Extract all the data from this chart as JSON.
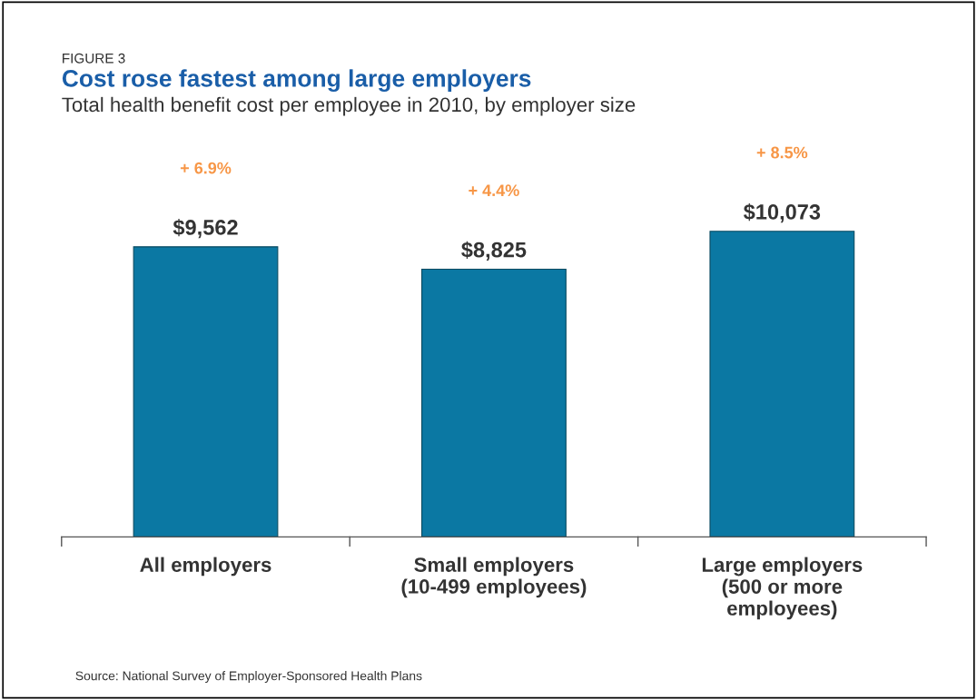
{
  "chart_data": {
    "type": "bar",
    "title": "Cost rose fastest among large employers",
    "subtitle": "Total health benefit cost per employee in 2010, by employer size",
    "categories": [
      "All employers",
      "Small employers\n(10-499 employees)",
      "Large employers\n(500 or more\nemployees)"
    ],
    "values": [
      9562,
      8825,
      10073
    ],
    "color": "#0b78a3",
    "data_labels": true,
    "value_labels": [
      "$9,562",
      "$8,825",
      "$10,073"
    ],
    "annotations": [
      "FIGURE 3",
      "+ 6.9%",
      "+ 4.4%",
      "+ 8.5%",
      "Source: National Survey of Employer-Sponsored Health Plans"
    ],
    "grid": false
  }
}
